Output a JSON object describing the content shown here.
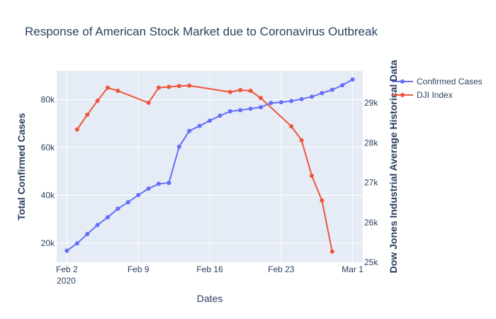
{
  "chart_data": {
    "type": "line",
    "title": "Response of American Stock Market due to Coronavirus Outbreak",
    "xlabel": "Dates",
    "ylabel_left": "Total Confirmed Cases",
    "ylabel_right": "Dow Jones Industrial Average Historical Data",
    "x_ticks": [
      {
        "date": "2020-02-02",
        "label": "Feb 2",
        "sublabel": "2020"
      },
      {
        "date": "2020-02-09",
        "label": "Feb 9",
        "sublabel": ""
      },
      {
        "date": "2020-02-16",
        "label": "Feb 16",
        "sublabel": ""
      },
      {
        "date": "2020-02-23",
        "label": "Feb 23",
        "sublabel": ""
      },
      {
        "date": "2020-03-01",
        "label": "Mar 1",
        "sublabel": ""
      }
    ],
    "xlim": [
      "2020-02-01",
      "2020-03-02"
    ],
    "y_left": {
      "range": [
        12000,
        92000
      ],
      "ticks": [
        20000,
        40000,
        60000,
        80000
      ],
      "tick_labels": [
        "20k",
        "40k",
        "60k",
        "80k"
      ]
    },
    "y_right": {
      "range": [
        25000,
        29800
      ],
      "ticks": [
        25000,
        26000,
        27000,
        28000,
        29000
      ],
      "tick_labels": [
        "25k",
        "26k",
        "27k",
        "28k",
        "29k"
      ]
    },
    "grid": true,
    "legend_position": "top-right",
    "series": [
      {
        "name": "Confirmed Cases",
        "axis": "left",
        "color": "#636efa",
        "points": [
          {
            "x": "2020-02-02",
            "y": 16800
          },
          {
            "x": "2020-02-03",
            "y": 19900
          },
          {
            "x": "2020-02-04",
            "y": 23800
          },
          {
            "x": "2020-02-05",
            "y": 27600
          },
          {
            "x": "2020-02-06",
            "y": 30800
          },
          {
            "x": "2020-02-07",
            "y": 34400
          },
          {
            "x": "2020-02-08",
            "y": 37100
          },
          {
            "x": "2020-02-09",
            "y": 40100
          },
          {
            "x": "2020-02-10",
            "y": 42800
          },
          {
            "x": "2020-02-11",
            "y": 44800
          },
          {
            "x": "2020-02-12",
            "y": 45200
          },
          {
            "x": "2020-02-13",
            "y": 60300
          },
          {
            "x": "2020-02-14",
            "y": 66900
          },
          {
            "x": "2020-02-15",
            "y": 69000
          },
          {
            "x": "2020-02-16",
            "y": 71200
          },
          {
            "x": "2020-02-17",
            "y": 73300
          },
          {
            "x": "2020-02-18",
            "y": 75100
          },
          {
            "x": "2020-02-19",
            "y": 75600
          },
          {
            "x": "2020-02-20",
            "y": 76200
          },
          {
            "x": "2020-02-21",
            "y": 76800
          },
          {
            "x": "2020-02-22",
            "y": 78600
          },
          {
            "x": "2020-02-23",
            "y": 78900
          },
          {
            "x": "2020-02-24",
            "y": 79400
          },
          {
            "x": "2020-02-25",
            "y": 80200
          },
          {
            "x": "2020-02-26",
            "y": 81200
          },
          {
            "x": "2020-02-27",
            "y": 82700
          },
          {
            "x": "2020-02-28",
            "y": 84100
          },
          {
            "x": "2020-02-29",
            "y": 86000
          },
          {
            "x": "2020-03-01",
            "y": 88400
          }
        ]
      },
      {
        "name": "DJI Index",
        "axis": "right",
        "color": "#ef553b",
        "points": [
          {
            "x": "2020-02-03",
            "y": 28330
          },
          {
            "x": "2020-02-04",
            "y": 28700
          },
          {
            "x": "2020-02-05",
            "y": 29050
          },
          {
            "x": "2020-02-06",
            "y": 29380
          },
          {
            "x": "2020-02-07",
            "y": 29300
          },
          {
            "x": "2020-02-10",
            "y": 29000
          },
          {
            "x": "2020-02-11",
            "y": 29380
          },
          {
            "x": "2020-02-12",
            "y": 29400
          },
          {
            "x": "2020-02-13",
            "y": 29420
          },
          {
            "x": "2020-02-14",
            "y": 29430
          },
          {
            "x": "2020-02-18",
            "y": 29270
          },
          {
            "x": "2020-02-19",
            "y": 29320
          },
          {
            "x": "2020-02-20",
            "y": 29300
          },
          {
            "x": "2020-02-21",
            "y": 29120
          },
          {
            "x": "2020-02-24",
            "y": 28410
          },
          {
            "x": "2020-02-25",
            "y": 28060
          },
          {
            "x": "2020-02-26",
            "y": 27170
          },
          {
            "x": "2020-02-27",
            "y": 26550
          },
          {
            "x": "2020-02-28",
            "y": 25270
          }
        ]
      }
    ]
  }
}
